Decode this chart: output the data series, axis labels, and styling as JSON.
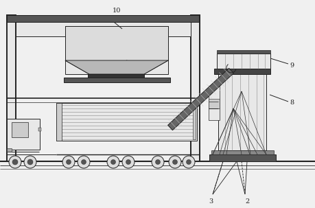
{
  "bg_color": "#f0f0f0",
  "lc": "#222222",
  "lw": 0.7,
  "lwt": 1.4,
  "fig_w": 4.59,
  "fig_h": 3.03,
  "dpi": 100,
  "xlim": [
    0,
    459
  ],
  "ylim": [
    0,
    303
  ]
}
